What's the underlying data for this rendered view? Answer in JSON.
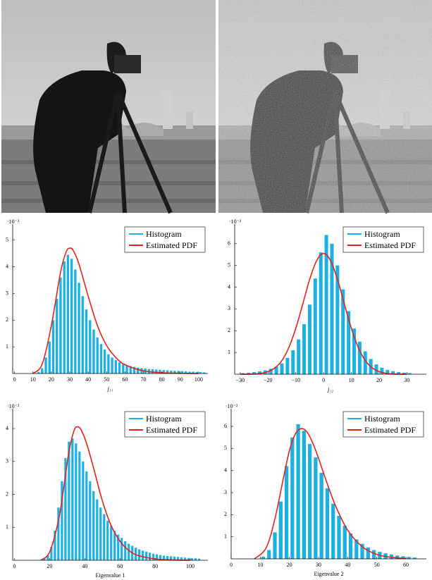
{
  "chart_data": [
    {
      "type": "histogram",
      "x_label": "j₁₁",
      "y_multiplier": "·10⁻²",
      "legend": "upper right",
      "xlim": [
        -1,
        105
      ],
      "ylim": [
        0,
        5.6
      ],
      "xticks": [
        0,
        10,
        20,
        30,
        40,
        50,
        60,
        70,
        80,
        90,
        100
      ],
      "yticks": [
        1,
        2,
        3,
        4,
        5
      ],
      "histogram": {
        "name": "Histogram",
        "color": "#1cb1e2",
        "bins": [
          12,
          14,
          16,
          18,
          20,
          22,
          24,
          26,
          28,
          30,
          32,
          34,
          36,
          38,
          40,
          42,
          44,
          46,
          48,
          50,
          52,
          54,
          56,
          58,
          60,
          62,
          64,
          66,
          68,
          70,
          72,
          74,
          76,
          78,
          80,
          82,
          84,
          86,
          88,
          90,
          92,
          94,
          96,
          98,
          100,
          102,
          104
        ],
        "counts": [
          0.05,
          0.2,
          0.6,
          1.2,
          2.0,
          2.8,
          3.6,
          4.2,
          4.45,
          4.3,
          3.9,
          3.4,
          2.9,
          2.4,
          2.0,
          1.65,
          1.35,
          1.1,
          0.9,
          0.72,
          0.6,
          0.5,
          0.42,
          0.36,
          0.3,
          0.28,
          0.25,
          0.22,
          0.2,
          0.19,
          0.17,
          0.16,
          0.15,
          0.14,
          0.13,
          0.12,
          0.11,
          0.1,
          0.1,
          0.09,
          0.08,
          0.07,
          0.07,
          0.06,
          0.05,
          0.04
        ]
      },
      "pdf": {
        "name": "Estimated PDF",
        "color": "#e2231c",
        "x": [
          10,
          15,
          20,
          25,
          28,
          30,
          32,
          35,
          40,
          45,
          50,
          55,
          60,
          70,
          80,
          90,
          100
        ],
        "values": [
          0,
          0.35,
          1.8,
          3.8,
          4.55,
          4.7,
          4.6,
          4.1,
          2.9,
          1.8,
          1.05,
          0.6,
          0.33,
          0.1,
          0.03,
          0.01,
          0
        ]
      }
    },
    {
      "type": "histogram",
      "x_label": "j₁₂",
      "y_multiplier": "·10⁻²",
      "legend": "upper right",
      "xlim": [
        -32,
        37
      ],
      "ylim": [
        0,
        6.9
      ],
      "xticks": [
        {
          "value": -30,
          "label": "−30"
        },
        {
          "value": -20,
          "label": "−20"
        },
        {
          "value": -10,
          "label": "−10"
        },
        0,
        10,
        20,
        30
      ],
      "yticks": [
        1,
        2,
        3,
        4,
        5,
        6
      ],
      "histogram": {
        "name": "Histogram",
        "color": "#1cb1e2",
        "bins": [
          -30,
          -28,
          -26,
          -24,
          -22,
          -20,
          -18,
          -16,
          -14,
          -12,
          -10,
          -8,
          -6,
          -4,
          -2,
          0,
          2,
          4,
          6,
          8,
          10,
          12,
          14,
          16,
          18,
          20,
          22,
          24,
          26,
          28,
          30,
          32
        ],
        "counts": [
          0.05,
          0.07,
          0.1,
          0.13,
          0.18,
          0.25,
          0.35,
          0.5,
          0.75,
          1.1,
          1.6,
          2.3,
          3.2,
          4.4,
          5.6,
          6.4,
          6.0,
          5.0,
          3.9,
          2.9,
          2.1,
          1.5,
          1.05,
          0.7,
          0.45,
          0.3,
          0.2,
          0.14,
          0.1,
          0.07,
          0.05
        ]
      },
      "pdf": {
        "name": "Estimated PDF",
        "color": "#e2231c",
        "x": [
          -30,
          -27.5,
          -25,
          -22.5,
          -20,
          -17.5,
          -15,
          -12.5,
          -10,
          -7.5,
          -5,
          -2.5,
          0,
          2.5,
          5,
          7.5,
          10,
          12.5,
          15,
          17.5,
          20,
          22.5,
          25,
          27.5,
          30
        ],
        "values": [
          0,
          0,
          0.01,
          0.04,
          0.12,
          0.29,
          0.63,
          1.23,
          2.11,
          3.22,
          4.36,
          5.22,
          5.55,
          5.22,
          4.36,
          3.22,
          2.11,
          1.23,
          0.63,
          0.29,
          0.12,
          0.04,
          0.01,
          0,
          0
        ]
      }
    },
    {
      "type": "histogram",
      "x_label": "Eigenvalue 1",
      "y_multiplier": "·10⁻²",
      "legend": "upper right",
      "xlim": [
        -1,
        110
      ],
      "ylim": [
        0,
        4.6
      ],
      "xticks": [
        0,
        20,
        40,
        60,
        80,
        100
      ],
      "yticks": [
        1,
        2,
        3,
        4
      ],
      "histogram": {
        "name": "Histogram",
        "color": "#1cb1e2",
        "bins": [
          16,
          18,
          20,
          22,
          24,
          26,
          28,
          30,
          32,
          34,
          36,
          38,
          40,
          42,
          44,
          46,
          48,
          50,
          52,
          54,
          56,
          58,
          60,
          62,
          64,
          66,
          68,
          70,
          72,
          74,
          76,
          78,
          80,
          82,
          84,
          86,
          88,
          90,
          92,
          94,
          96,
          98,
          100,
          102,
          104,
          106
        ],
        "counts": [
          0.05,
          0.15,
          0.4,
          0.9,
          1.6,
          2.4,
          3.1,
          3.6,
          3.7,
          3.55,
          3.3,
          3.0,
          2.7,
          2.4,
          2.1,
          1.85,
          1.6,
          1.4,
          1.2,
          1.05,
          0.9,
          0.78,
          0.68,
          0.58,
          0.5,
          0.44,
          0.38,
          0.33,
          0.29,
          0.26,
          0.23,
          0.2,
          0.18,
          0.16,
          0.14,
          0.13,
          0.12,
          0.11,
          0.1,
          0.09,
          0.08,
          0.07,
          0.06,
          0.06,
          0.05
        ]
      },
      "pdf": {
        "name": "Estimated PDF",
        "color": "#e2231c",
        "x": [
          15,
          20,
          25,
          28,
          31,
          34,
          36,
          38,
          41,
          45,
          50,
          55,
          60,
          65,
          70,
          80,
          90,
          100
        ],
        "values": [
          0,
          0.25,
          1.2,
          2.2,
          3.3,
          3.95,
          4.05,
          3.95,
          3.55,
          2.8,
          1.8,
          1.05,
          0.58,
          0.3,
          0.15,
          0.04,
          0.01,
          0
        ]
      }
    },
    {
      "type": "histogram",
      "x_label": "Eigenvalue 2",
      "y_multiplier": "·10⁻²",
      "legend": "upper right",
      "xlim": [
        0,
        67
      ],
      "ylim": [
        0,
        6.8
      ],
      "xticks": [
        0,
        10,
        20,
        30,
        40,
        50,
        60
      ],
      "yticks": [
        1,
        2,
        3,
        4,
        5,
        6
      ],
      "histogram": {
        "name": "Histogram",
        "color": "#1cb1e2",
        "bins": [
          10,
          12,
          14,
          16,
          18,
          20,
          22,
          24,
          26,
          28,
          30,
          32,
          34,
          36,
          38,
          40,
          42,
          44,
          46,
          48,
          50,
          52,
          54,
          56,
          58,
          60,
          62,
          64
        ],
        "counts": [
          0.1,
          0.4,
          1.2,
          2.6,
          4.2,
          5.5,
          6.1,
          5.8,
          5.2,
          4.6,
          3.9,
          3.2,
          2.5,
          1.95,
          1.5,
          1.15,
          0.88,
          0.68,
          0.52,
          0.4,
          0.32,
          0.25,
          0.2,
          0.15,
          0.12,
          0.09,
          0.06
        ]
      },
      "pdf": {
        "name": "Estimated PDF",
        "color": "#e2231c",
        "x": [
          8,
          12,
          15,
          18,
          20,
          22,
          24,
          26,
          28,
          30,
          33,
          36,
          40,
          45,
          50,
          55,
          60
        ],
        "values": [
          0,
          0.5,
          1.8,
          3.7,
          4.9,
          5.65,
          5.9,
          5.75,
          5.25,
          4.55,
          3.4,
          2.35,
          1.3,
          0.55,
          0.2,
          0.07,
          0.02
        ]
      }
    }
  ]
}
